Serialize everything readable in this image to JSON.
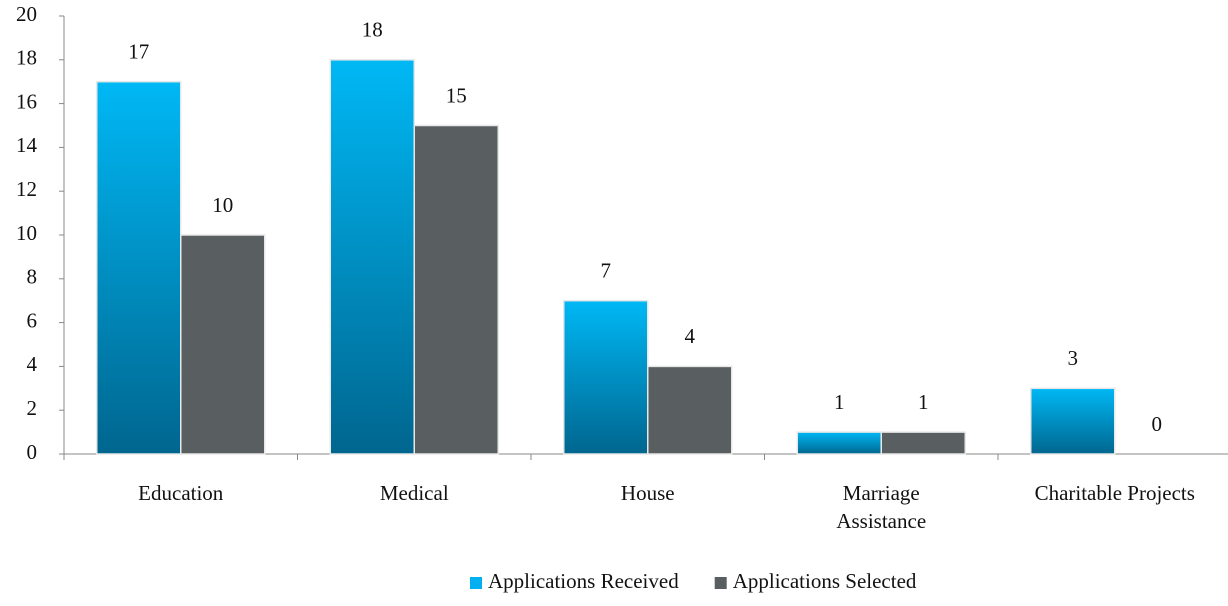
{
  "chart_data": {
    "type": "bar",
    "categories": [
      "Education",
      "Medical",
      "House",
      "Marriage\nAssistance",
      "Charitable Projects"
    ],
    "series": [
      {
        "name": "Applications Received",
        "color": "#00b0f0",
        "values": [
          17,
          18,
          7,
          1,
          3
        ]
      },
      {
        "name": "Applications Selected",
        "color": "#595f60",
        "values": [
          10,
          15,
          4,
          1,
          0
        ]
      }
    ],
    "ylim": [
      0,
      20
    ],
    "yticks": [
      0,
      2,
      4,
      6,
      8,
      10,
      12,
      14,
      16,
      18,
      20
    ],
    "grid": false,
    "legend": "bottom"
  }
}
